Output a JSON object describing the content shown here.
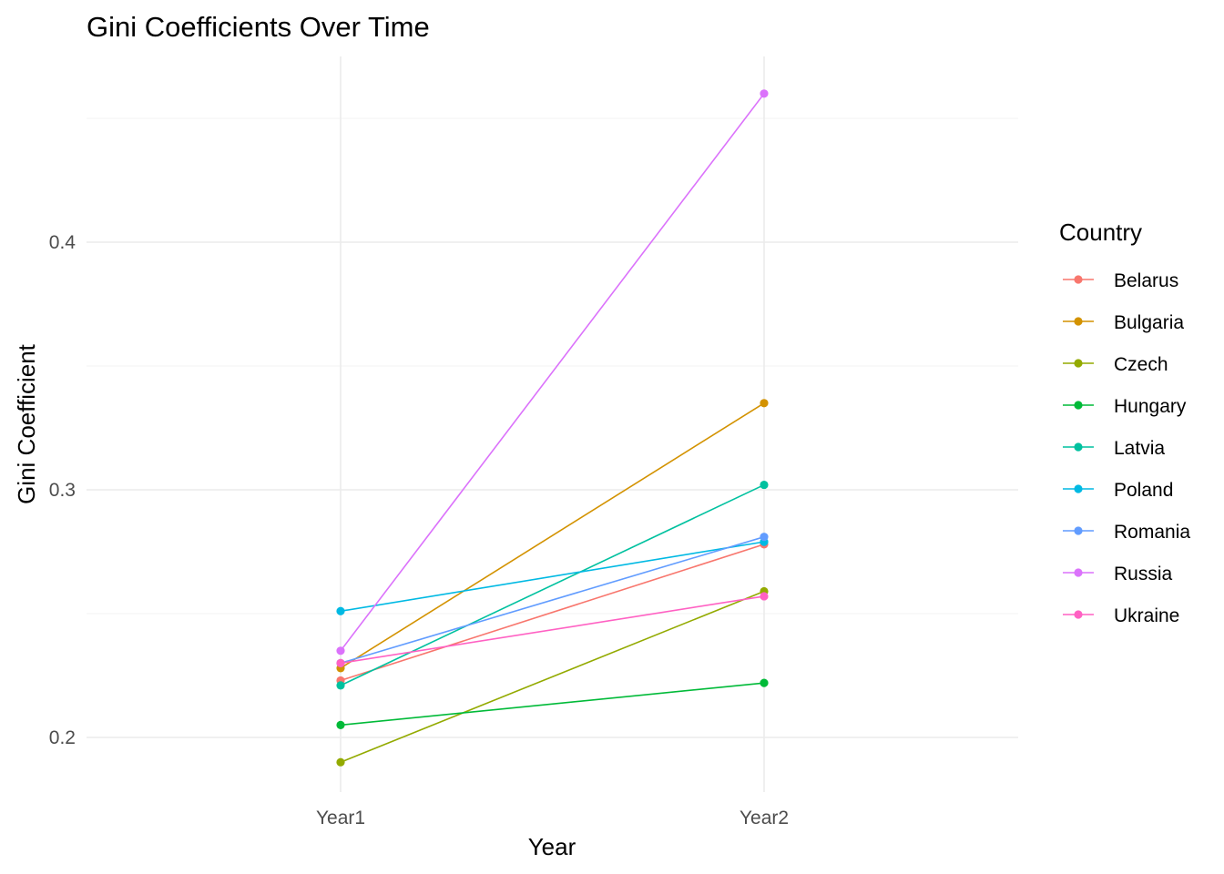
{
  "chart_data": {
    "type": "line",
    "title": "Gini Coefficients Over Time",
    "xlabel": "Year",
    "ylabel": "Gini Coefficient",
    "categories": [
      "Year1",
      "Year2"
    ],
    "ylim": [
      0.175,
      0.47
    ],
    "yticks": [
      "0.2",
      "0.3",
      "0.4"
    ],
    "grid": true,
    "legend": {
      "title": "Country",
      "placement": "right"
    },
    "series": [
      {
        "name": "Belarus",
        "color": "#F8766D",
        "values": [
          0.223,
          0.278
        ]
      },
      {
        "name": "Bulgaria",
        "color": "#D39200",
        "values": [
          0.228,
          0.335
        ]
      },
      {
        "name": "Czech",
        "color": "#93AA00",
        "values": [
          0.19,
          0.259
        ]
      },
      {
        "name": "Hungary",
        "color": "#00BA38",
        "values": [
          0.205,
          0.222
        ]
      },
      {
        "name": "Latvia",
        "color": "#00C19F",
        "values": [
          0.221,
          0.302
        ]
      },
      {
        "name": "Poland",
        "color": "#00B9E3",
        "values": [
          0.251,
          0.279
        ]
      },
      {
        "name": "Romania",
        "color": "#619CFF",
        "values": [
          0.23,
          0.281
        ]
      },
      {
        "name": "Russia",
        "color": "#DB72FB",
        "values": [
          0.235,
          0.46
        ]
      },
      {
        "name": "Ukraine",
        "color": "#FF61C3",
        "values": [
          0.23,
          0.257
        ]
      }
    ]
  }
}
